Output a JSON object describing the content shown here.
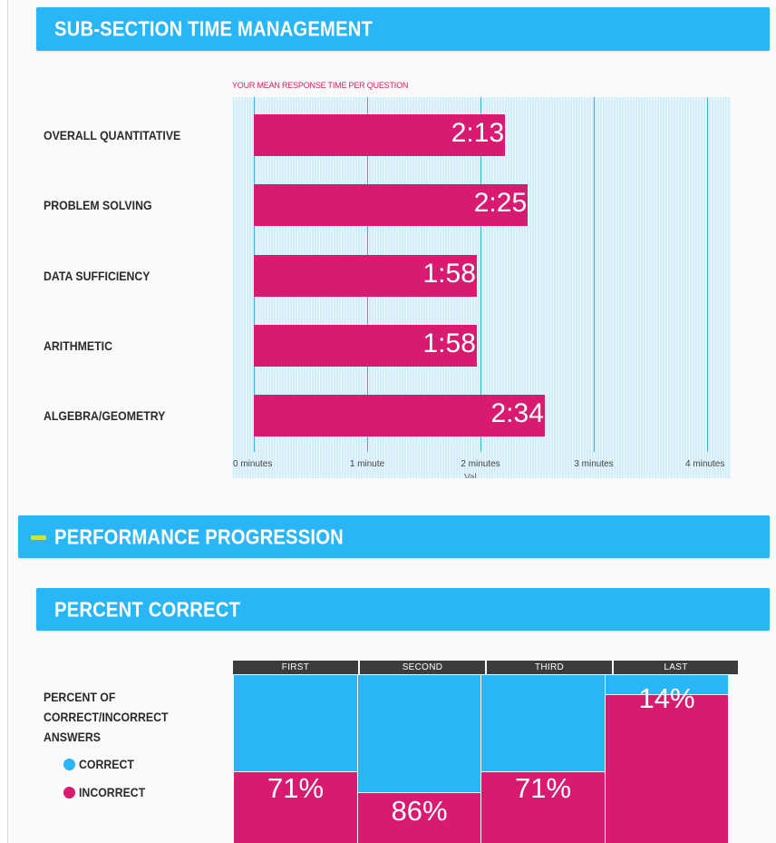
{
  "sections": {
    "time_management": {
      "title": "SUB-SECTION TIME MANAGEMENT"
    },
    "performance_progression": {
      "title": "PERFORMANCE PROGRESSION"
    },
    "percent_correct": {
      "title": "PERCENT CORRECT"
    }
  },
  "colors": {
    "banner": "#29b6f6",
    "bar": "#d81b70",
    "correct": "#29b6f6",
    "incorrect": "#d81b70",
    "toggle": "#cde04a"
  },
  "chart_data": [
    {
      "type": "bar",
      "orientation": "horizontal",
      "title": "YOUR MEAN RESPONSE TIME PER QUESTION",
      "categories": [
        "OVERALL QUANTITATIVE",
        "PROBLEM SOLVING",
        "DATA SUFFICIENCY",
        "ARITHMETIC",
        "ALGEBRA/GEOMETRY"
      ],
      "values": [
        2.217,
        2.417,
        1.967,
        1.967,
        2.567
      ],
      "value_labels": [
        "2:13",
        "2:25",
        "1:58",
        "1:58",
        "2:34"
      ],
      "xlim": [
        0,
        4
      ],
      "x_ticks": [
        0,
        1,
        2,
        3,
        4
      ],
      "x_tick_labels": [
        "0 minutes",
        "1 minute",
        "2 minutes",
        "3 minutes",
        "4 minutes"
      ],
      "xlabel": "Val",
      "grid": true
    },
    {
      "type": "bar",
      "stacked": true,
      "title": "PERCENT OF CORRECT/INCORRECT ANSWERS",
      "categories": [
        "FIRST",
        "SECOND",
        "THIRD",
        "LAST"
      ],
      "series": [
        {
          "name": "CORRECT",
          "values": [
            71,
            86,
            71,
            14
          ],
          "labels": [
            "71%",
            "86%",
            "71%",
            "14%"
          ]
        },
        {
          "name": "INCORRECT",
          "values": [
            29,
            14,
            29,
            86
          ]
        }
      ],
      "legend": [
        "CORRECT",
        "INCORRECT"
      ],
      "legend_position": "left"
    }
  ]
}
